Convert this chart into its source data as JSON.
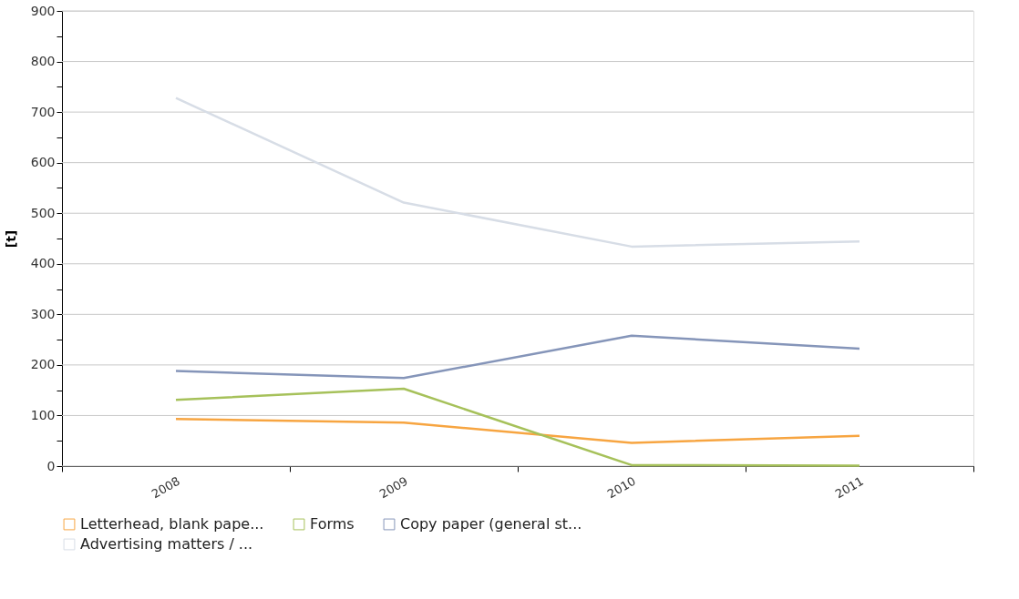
{
  "chart_data": {
    "type": "line",
    "ylabel": "[t]",
    "categories": [
      "2008",
      "2009",
      "2010",
      "2011"
    ],
    "series": [
      {
        "name": "Letterhead, blank pape...",
        "color": "#f7a541",
        "values": [
          93,
          86,
          46,
          60
        ]
      },
      {
        "name": "Forms",
        "color": "#a6c15a",
        "values": [
          131,
          153,
          2,
          1
        ]
      },
      {
        "name": "Copy paper (general st...",
        "color": "#8595b9",
        "values": [
          188,
          174,
          258,
          232
        ]
      },
      {
        "name": "Advertising matters / ...",
        "color": "#d7dde6",
        "values": [
          728,
          521,
          434,
          444
        ]
      }
    ],
    "ylim": [
      0,
      900
    ],
    "yticks": [
      0,
      {
        "value": 50,
        "label": null
      },
      100,
      {
        "value": 150,
        "label": null
      },
      200,
      {
        "value": 250,
        "label": null
      },
      300,
      {
        "value": 350,
        "label": null
      },
      400,
      {
        "value": 450,
        "label": null
      },
      500,
      {
        "value": 550,
        "label": null
      },
      600,
      {
        "value": 650,
        "label": null
      },
      700,
      {
        "value": 750,
        "label": null
      },
      800,
      {
        "value": 850,
        "label": null
      },
      900
    ],
    "grid": "y",
    "legend": "bottom",
    "marker": "none",
    "line_style": "solid"
  }
}
